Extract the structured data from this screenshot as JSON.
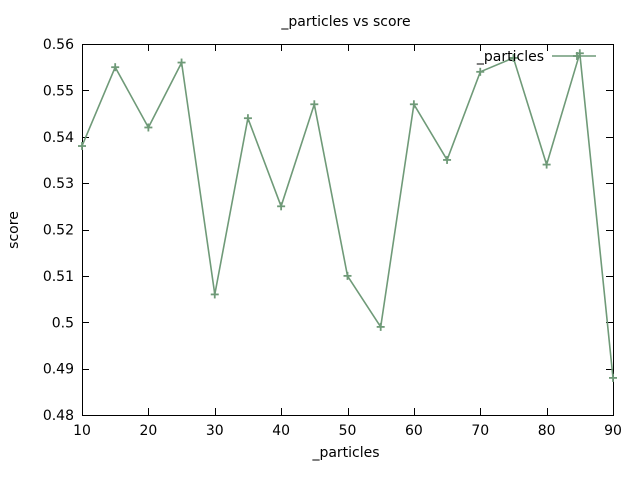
{
  "chart_data": {
    "type": "line",
    "title": "_particles vs score",
    "xlabel": "_particles",
    "ylabel": "score",
    "xlim": [
      10,
      90
    ],
    "ylim": [
      0.48,
      0.56
    ],
    "xticks": [
      10,
      20,
      30,
      40,
      50,
      60,
      70,
      80,
      90
    ],
    "xtick_labels": [
      "10",
      "20",
      "30",
      "40",
      "50",
      "60",
      "70",
      "80",
      "90"
    ],
    "yticks": [
      0.48,
      0.49,
      0.5,
      0.51,
      0.52,
      0.53,
      0.54,
      0.55,
      0.56
    ],
    "ytick_labels": [
      "0.48",
      "0.49",
      "0.5",
      "0.51",
      "0.52",
      "0.53",
      "0.54",
      "0.55",
      "0.56"
    ],
    "grid": false,
    "legend": "top-right",
    "series": [
      {
        "name": "_particles",
        "color": "#6f9a78",
        "marker": "plus",
        "x": [
          10,
          15,
          20,
          25,
          30,
          35,
          40,
          45,
          50,
          55,
          60,
          65,
          70,
          75,
          80,
          85,
          90
        ],
        "y": [
          0.538,
          0.555,
          0.542,
          0.556,
          0.506,
          0.544,
          0.525,
          0.547,
          0.51,
          0.499,
          0.547,
          0.535,
          0.554,
          0.557,
          0.534,
          0.558,
          0.488
        ]
      }
    ]
  }
}
